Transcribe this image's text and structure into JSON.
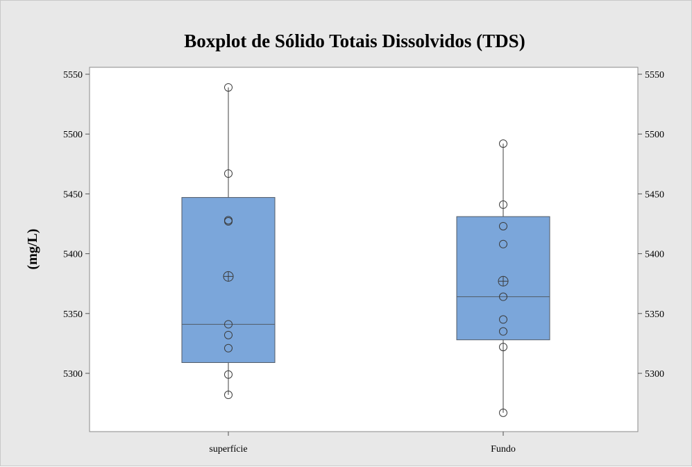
{
  "chart_data": {
    "type": "boxplot",
    "title": "Boxplot de Sólido Totais Dissolvidos (TDS)",
    "xlabel": "",
    "ylabel": "(mg/L)",
    "ylim": [
      5252,
      5555
    ],
    "yticks": [
      5300,
      5350,
      5400,
      5450,
      5500,
      5550
    ],
    "grid": false,
    "categories": [
      "superfície",
      "Fundo"
    ],
    "series": [
      {
        "category": "superfície",
        "q1": 5309,
        "median": 5341,
        "q3": 5447,
        "mean": 5381,
        "whisker_low": 5282,
        "whisker_high": 5539,
        "points": [
          5539,
          5467,
          5428,
          5427,
          5341,
          5332,
          5321,
          5299,
          5282
        ]
      },
      {
        "category": "Fundo",
        "q1": 5328,
        "median": 5364,
        "q3": 5431,
        "mean": 5377,
        "whisker_low": 5267,
        "whisker_high": 5492,
        "points": [
          5492,
          5441,
          5423,
          5408,
          5364,
          5345,
          5335,
          5322,
          5267
        ]
      }
    ],
    "colors": {
      "box_fill": "#7ba6da",
      "box_stroke": "#505a66",
      "line": "#404040",
      "plot_bg": "#ffffff",
      "figure_bg": "#e8e8e8"
    }
  }
}
